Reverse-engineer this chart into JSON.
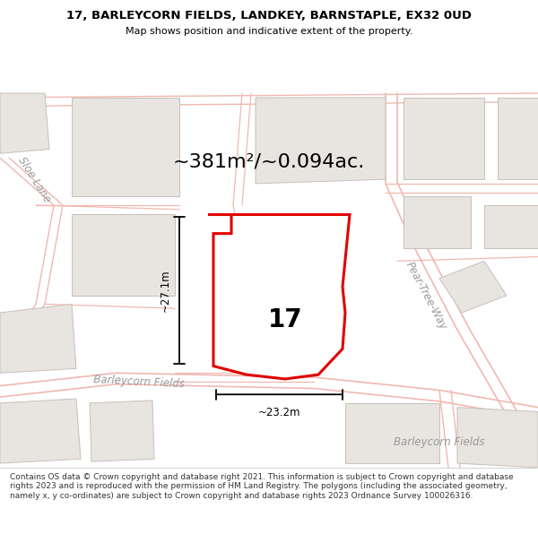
{
  "title": "17, BARLEYCORN FIELDS, LANDKEY, BARNSTAPLE, EX32 0UD",
  "subtitle": "Map shows position and indicative extent of the property.",
  "area_text": "~381m²/~0.094ac.",
  "number_label": "17",
  "width_label": "~23.2m",
  "height_label": "~27.1m",
  "road_label_1": "Barleycorn Fields",
  "road_label_2": "Pear-Tree-Way",
  "road_label_3": "Sloe Lane",
  "road_label_4": "Barleycorn Fields",
  "footer_text": "Contains OS data © Crown copyright and database right 2021. This information is subject to Crown copyright and database rights 2023 and is reproduced with the permission of HM Land Registry. The polygons (including the associated geometry, namely x, y co-ordinates) are subject to Crown copyright and database rights 2023 Ordnance Survey 100026316.",
  "map_bg": "#f5f3f0",
  "road_line_color": "#f0b8b0",
  "building_fill": "#e8e4e0",
  "building_edge": "#c8c0b8",
  "highlight_fill": "#ffffff",
  "highlight_edge": "#e00000",
  "inner_building_fill": "#dedad5",
  "inner_building_edge": "#b8b0a8",
  "dim_color": "#000000",
  "road_label_color": "#999999",
  "title_color": "#000000",
  "footer_color": "#333333",
  "title_bg": "#ffffff",
  "footer_bg": "#ffffff"
}
